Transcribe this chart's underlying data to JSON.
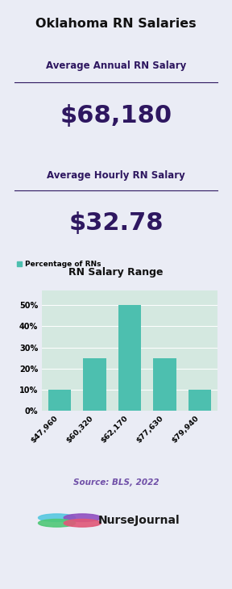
{
  "title": "Oklahoma RN Salaries",
  "bg_color": "#eaecf5",
  "annual_label": "Average Annual RN Salary",
  "annual_value": "$68,180",
  "hourly_label": "Average Hourly RN Salary",
  "hourly_value": "$32.78",
  "box1_color": "#d8d2ea",
  "box2_color": "#d8d2ea",
  "chart_bg": "#d4e8e0",
  "chart_title": "RN Salary Range",
  "legend_label": "Percentage of RNs",
  "legend_dot_color": "#4dbfaf",
  "bar_categories": [
    "$47,960",
    "$60,320",
    "$62,170",
    "$77,630",
    "$79,940"
  ],
  "bar_values": [
    10,
    25,
    50,
    25,
    10
  ],
  "bar_color": "#4dbfaf",
  "ytick_labels": [
    "0%",
    "10%",
    "20%",
    "30%",
    "40%",
    "50%"
  ],
  "ytick_values": [
    0,
    10,
    20,
    30,
    40,
    50
  ],
  "source_text": "Source: BLS, 2022",
  "source_color": "#7050a8",
  "purple_text": "#2e1760",
  "title_color": "#111111",
  "nj_text": "NurseJournal",
  "nj_color": "#1a1a1a"
}
